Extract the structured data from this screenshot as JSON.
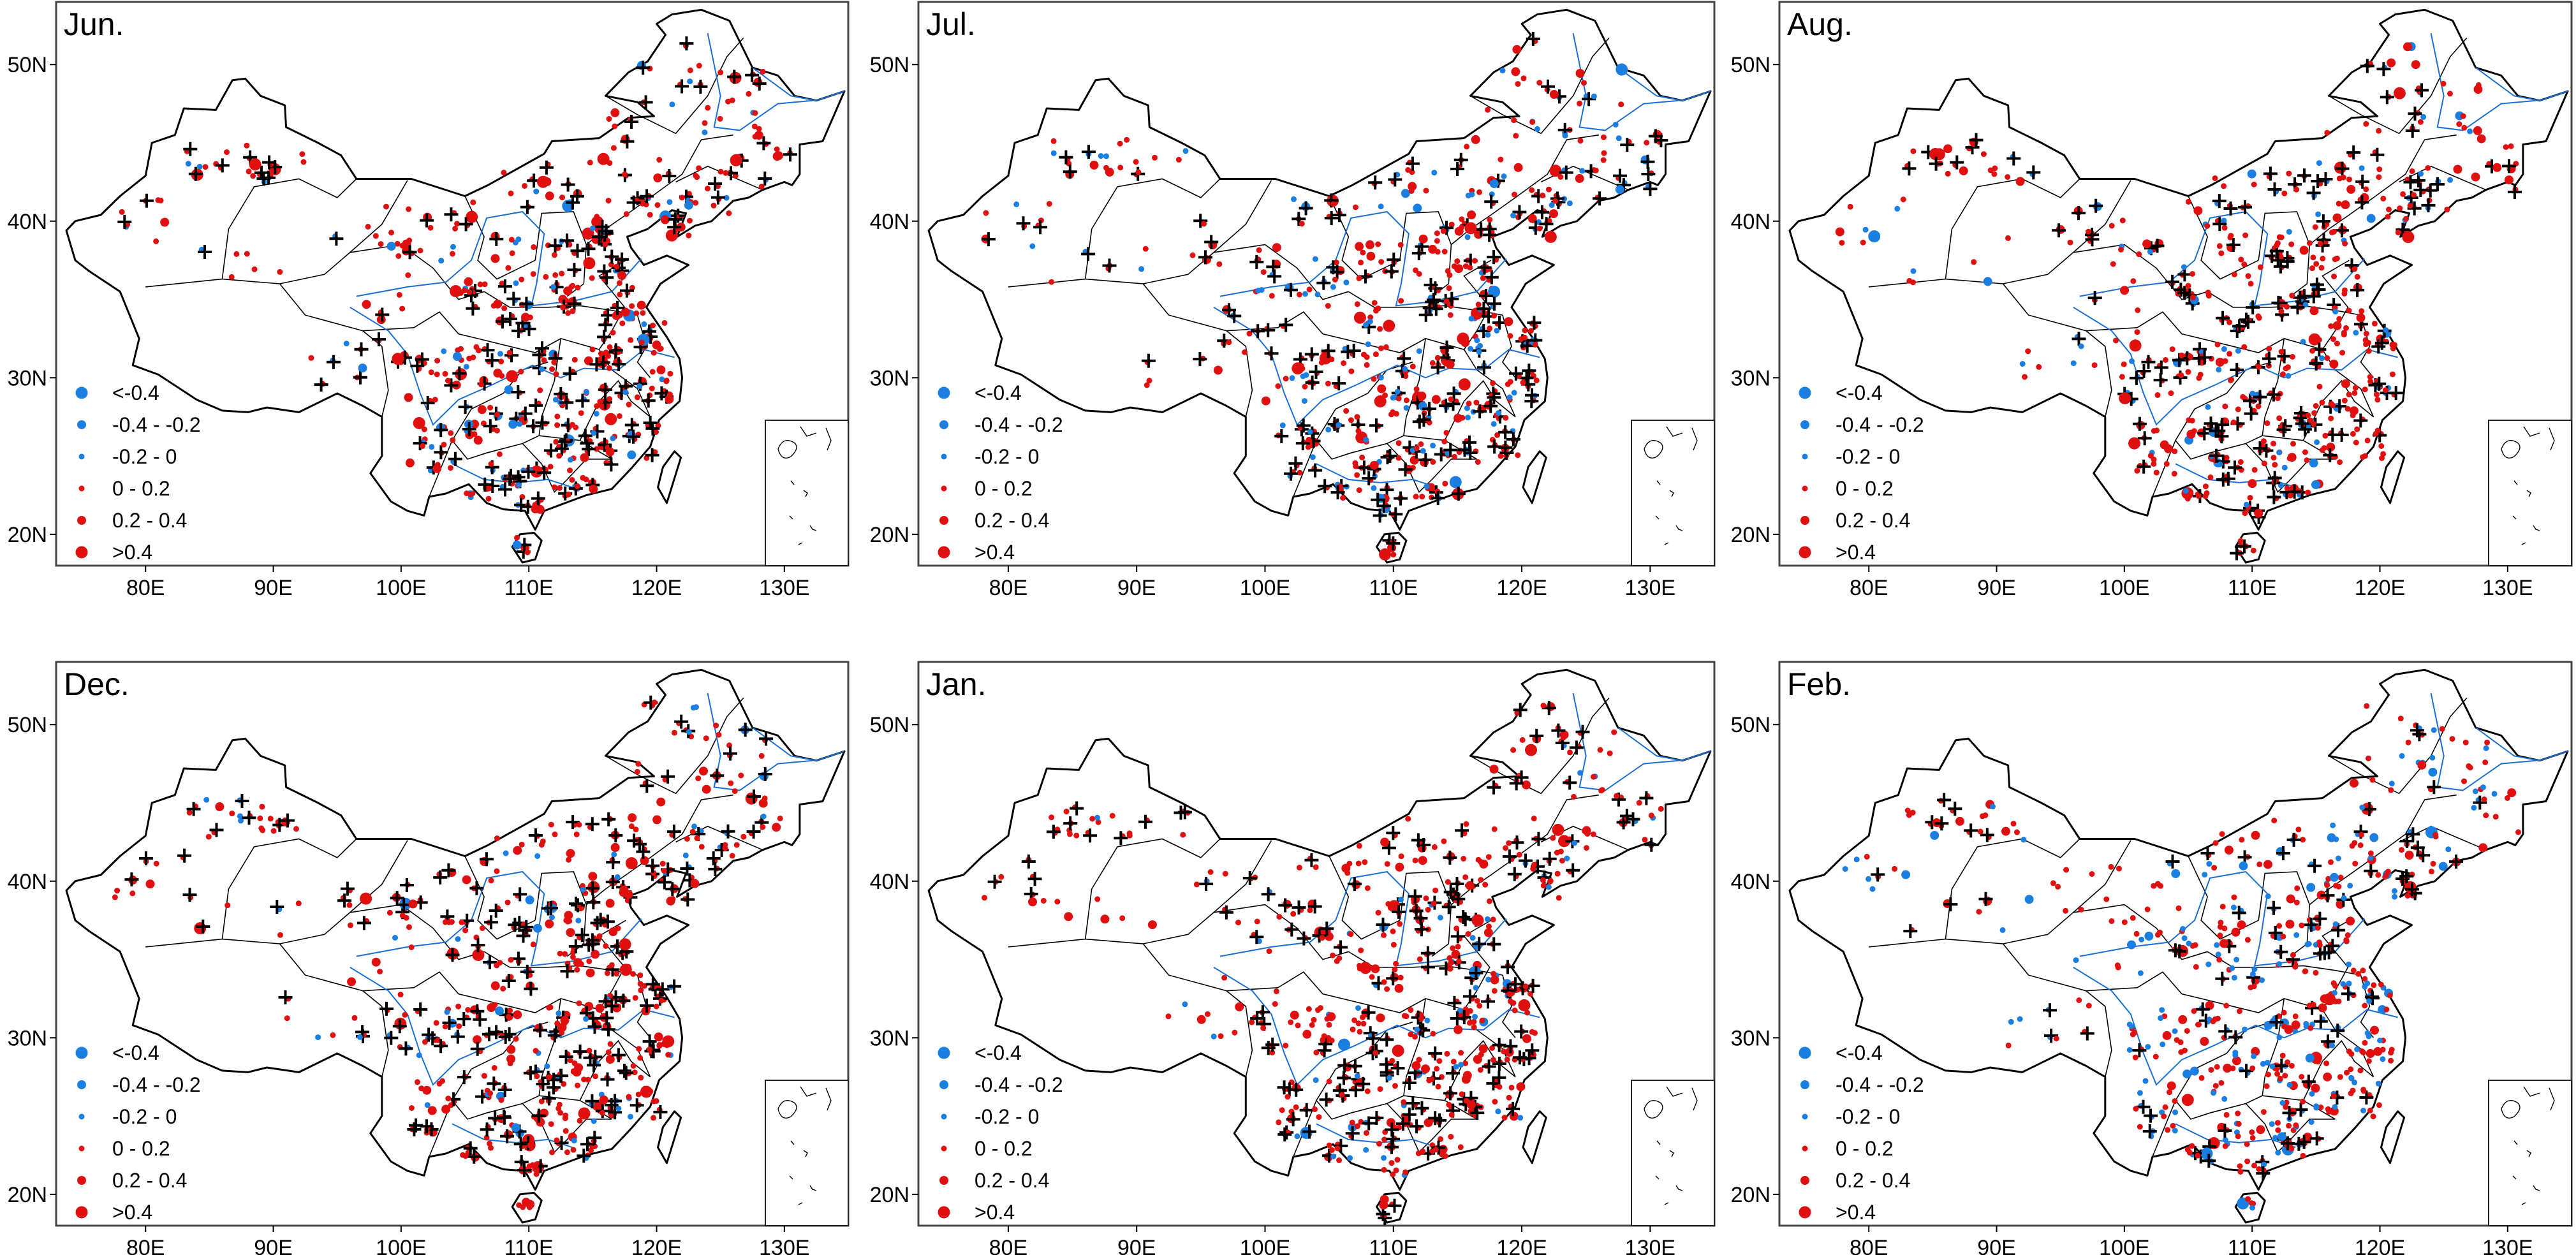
{
  "map": {
    "lon_ticks": [
      "80E",
      "90E",
      "100E",
      "110E",
      "120E",
      "130E"
    ],
    "lat_ticks": [
      "20N",
      "30N",
      "40N",
      "50N"
    ],
    "legend": [
      {
        "label": "<-0.4",
        "color": "#1a7fe0",
        "size": "large"
      },
      {
        "label": "-0.4 - -0.2",
        "color": "#1a7fe0",
        "size": "medium"
      },
      {
        "label": "-0.2 - 0",
        "color": "#1a7fe0",
        "size": "small"
      },
      {
        "label": "0 - 0.2",
        "color": "#e01010",
        "size": "small"
      },
      {
        "label": "0.2 - 0.4",
        "color": "#e01010",
        "size": "medium"
      },
      {
        "label": ">0.4",
        "color": "#e01010",
        "size": "large"
      }
    ],
    "significance_marker": "plus",
    "colors": {
      "negative": "#1a7fe0",
      "positive": "#e01010",
      "border": "#000000",
      "river": "#1a6fd0"
    }
  },
  "panels": [
    {
      "title": "Jun.",
      "warm_fraction": 0.84,
      "plus_fraction": 0.32,
      "seed": 11
    },
    {
      "title": "Jul.",
      "warm_fraction": 0.78,
      "plus_fraction": 0.3,
      "seed": 23
    },
    {
      "title": "Aug.",
      "warm_fraction": 0.86,
      "plus_fraction": 0.3,
      "seed": 37
    },
    {
      "title": "Dec.",
      "warm_fraction": 0.88,
      "plus_fraction": 0.34,
      "seed": 41
    },
    {
      "title": "Jan.",
      "warm_fraction": 0.9,
      "plus_fraction": 0.3,
      "seed": 53
    },
    {
      "title": "Feb.",
      "warm_fraction": 0.7,
      "plus_fraction": 0.12,
      "seed": 67
    }
  ]
}
